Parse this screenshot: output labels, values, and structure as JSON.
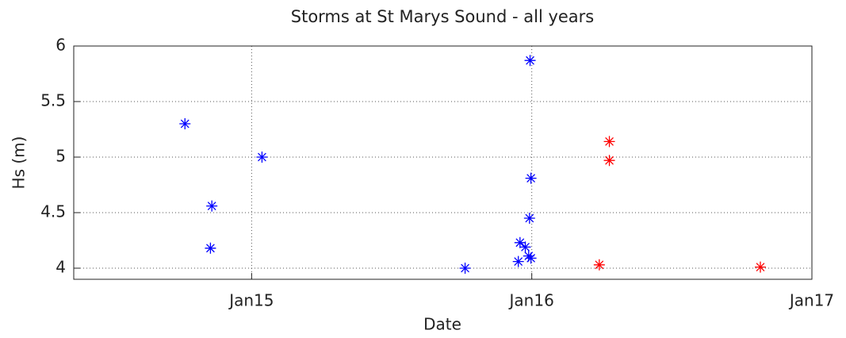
{
  "chart_data": {
    "type": "scatter",
    "title": "Storms at St Marys Sound - all years",
    "xlabel": "Date",
    "ylabel": "Hs (m)",
    "xlim": [
      2014.365,
      2017
    ],
    "ylim": [
      3.9,
      6
    ],
    "xticks": [
      {
        "value": 2015,
        "label": "Jan15"
      },
      {
        "value": 2016,
        "label": "Jan16"
      },
      {
        "value": 2017,
        "label": "Jan17"
      }
    ],
    "yticks": [
      4,
      4.5,
      5,
      5.5,
      6
    ],
    "grid": true,
    "marker": "asterisk",
    "series": [
      {
        "color": "#0000ff",
        "x": [
          2014.762,
          2014.858,
          2014.853,
          2015.037,
          2015.762,
          2015.994,
          2015.997,
          2015.992,
          2015.958,
          2015.977,
          2015.952,
          2015.989,
          2015.997
        ],
        "values": [
          5.3,
          4.56,
          4.18,
          5.0,
          4.0,
          5.87,
          4.81,
          4.45,
          4.23,
          4.19,
          4.06,
          4.11,
          4.09
        ]
      },
      {
        "color": "#ff0000",
        "x": [
          2016.277,
          2016.277,
          2016.241,
          2016.816
        ],
        "values": [
          5.14,
          4.97,
          4.03,
          4.01
        ]
      }
    ]
  }
}
